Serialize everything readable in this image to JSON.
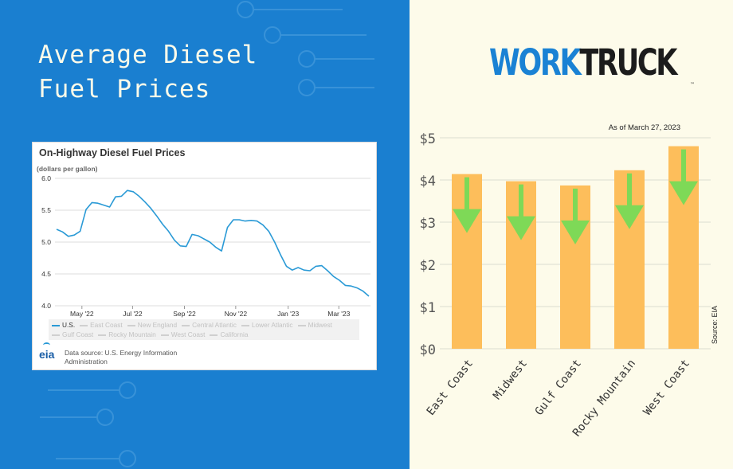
{
  "title": {
    "line1": "Average Diesel",
    "line2": "Fuel Prices"
  },
  "brand": {
    "part1": "WORK",
    "part2": "TRUCK",
    "mark": "™"
  },
  "eia_panel": {
    "title": "On-Highway Diesel Fuel Prices",
    "units": "(dollars per gallon)",
    "legend": [
      "U.S.",
      "East Coast",
      "New England",
      "Central Atlantic",
      "Lower Atlantic",
      "Midwest",
      "Gulf Coast",
      "Rocky Mountain",
      "West Coast",
      "California"
    ],
    "logo_text": "eia",
    "source": "Data source: U.S. Energy Information Administration"
  },
  "bar_panel": {
    "as_of": "As of March 27, 2023",
    "source_label": "Source: EIA"
  },
  "colors": {
    "bar": "#fdbe5b",
    "arrow": "#7ed957",
    "line": "#2a9ad6",
    "left_bg": "#1a7fd0",
    "right_bg": "#fdfbea"
  },
  "chart_data": [
    {
      "type": "line",
      "title": "On-Highway Diesel Fuel Prices",
      "ylabel": "(dollars per gallon)",
      "ylim": [
        4.0,
        6.0
      ],
      "yticks": [
        "4.0",
        "4.5",
        "5.0",
        "5.5",
        "6.0"
      ],
      "xticks": [
        {
          "label": "May '22",
          "x": 4.3
        },
        {
          "label": "Jul '22",
          "x": 12.9
        },
        {
          "label": "Sep '22",
          "x": 21.7
        },
        {
          "label": "Nov '22",
          "x": 30.4
        },
        {
          "label": "Jan '23",
          "x": 39.3
        },
        {
          "label": "Mar '23",
          "x": 47.9
        }
      ],
      "grid": true,
      "legend_position": "bottom",
      "series": [
        {
          "name": "U.S.",
          "values": [
            5.2,
            5.16,
            5.09,
            5.11,
            5.17,
            5.51,
            5.62,
            5.61,
            5.58,
            5.55,
            5.71,
            5.72,
            5.81,
            5.79,
            5.72,
            5.63,
            5.53,
            5.41,
            5.28,
            5.17,
            5.03,
            4.94,
            4.93,
            5.12,
            5.1,
            5.05,
            5.0,
            4.92,
            4.86,
            5.23,
            5.35,
            5.35,
            5.33,
            5.34,
            5.33,
            5.27,
            5.17,
            5.0,
            4.8,
            4.62,
            4.56,
            4.6,
            4.56,
            4.55,
            4.62,
            4.63,
            4.55,
            4.46,
            4.4,
            4.32,
            4.31,
            4.28,
            4.23,
            4.15
          ]
        }
      ]
    },
    {
      "type": "bar",
      "categories": [
        "East Coast",
        "Midwest",
        "Gulf Coast",
        "Rocky Mountain",
        "West Coast"
      ],
      "values": [
        4.14,
        3.97,
        3.87,
        4.23,
        4.8
      ],
      "ylim": [
        0,
        5
      ],
      "yticks": [
        "$0",
        "$1",
        "$2",
        "$3",
        "$4",
        "$5"
      ],
      "grid": true
    }
  ]
}
